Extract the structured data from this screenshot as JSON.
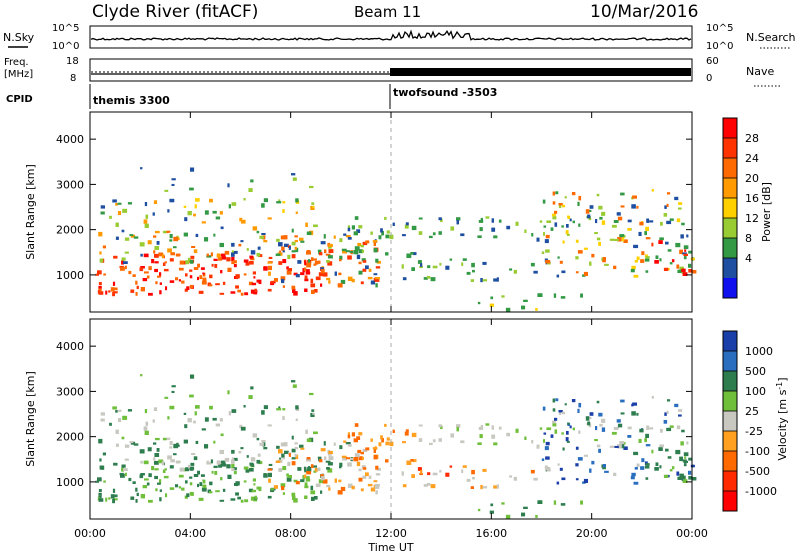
{
  "header": {
    "station": "Clyde River (fitACF)",
    "beam": "Beam 11",
    "date": "10/Mar/2016"
  },
  "params": {
    "nsky_label": "N.Sky",
    "nsearch_label": "N.Search",
    "nsky_ticks": [
      "10^5",
      "10^0"
    ],
    "nsearch_ticks": [
      "10^5",
      "10^0"
    ],
    "freq_label_1": "Freq.",
    "freq_label_2": "[MHz]",
    "freq_ticks": [
      "18",
      "8"
    ],
    "nave_label": "Nave",
    "nave_ticks": [
      "60",
      "0"
    ],
    "cpid_label": "CPID",
    "cpid_1": "themis 3300",
    "cpid_2": "twofsound -3503"
  },
  "axes": {
    "ylabel": "Slant Range [km]",
    "xlabel": "Time UT",
    "y_ticks": [
      "4000",
      "3000",
      "2000",
      "1000"
    ],
    "x_ticks": [
      "00:00",
      "04:00",
      "08:00",
      "12:00",
      "16:00",
      "20:00",
      "00:00"
    ]
  },
  "power_scale": {
    "label": "Power [dB]",
    "ticks": [
      "28",
      "24",
      "20",
      "16",
      "12",
      "8",
      "4"
    ],
    "colors": [
      "#ff0000",
      "#ff3300",
      "#ff6a00",
      "#ff9a00",
      "#ffd000",
      "#99cc33",
      "#339944",
      "#1f4fa0",
      "#1010ee"
    ]
  },
  "velocity_scale": {
    "label": "Velocity  [m s",
    "label_sup": "-1",
    "label_end": "]",
    "ticks": [
      "1000",
      "500",
      "100",
      "25",
      "-25",
      "-100",
      "-500",
      "-1000"
    ],
    "colors": [
      "#1a3fa8",
      "#2a6fbf",
      "#2e7d4f",
      "#6fbf3a",
      "#c8c8c0",
      "#ffa020",
      "#ff6a00",
      "#ff2a00",
      "#ff0000"
    ]
  },
  "chart_data": [
    {
      "type": "heatmap",
      "title": "Power",
      "xlabel": "Time UT",
      "ylabel": "Slant Range [km]",
      "x_range": [
        "00:00",
        "24:00"
      ],
      "ylim": [
        180,
        4600
      ],
      "colorbar_label": "Power [dB]",
      "colorbar_range": [
        0,
        32
      ],
      "grid": false
    },
    {
      "type": "heatmap",
      "title": "Velocity",
      "xlabel": "Time UT",
      "ylabel": "Slant Range [km]",
      "x_range": [
        "00:00",
        "24:00"
      ],
      "ylim": [
        180,
        4600
      ],
      "colorbar_label": "Velocity [m s-1]",
      "colorbar_range": [
        -1000,
        1000
      ],
      "grid": false
    }
  ]
}
